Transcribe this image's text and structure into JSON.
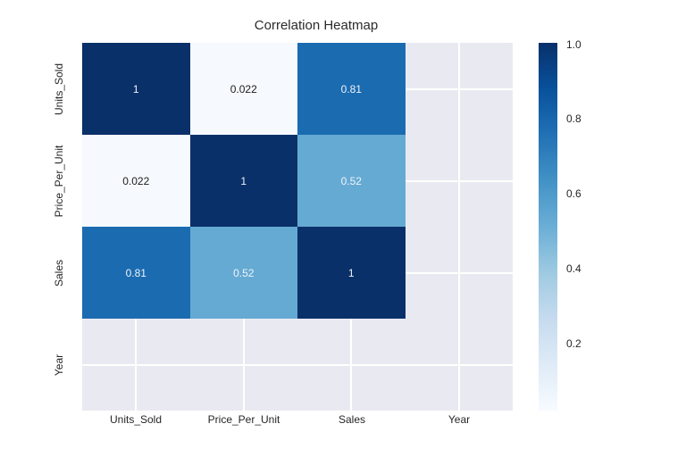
{
  "chart_data": {
    "type": "heatmap",
    "title": "Correlation Heatmap",
    "x_tick_labels": [
      "Units_Sold",
      "Price_Per_Unit",
      "Sales",
      "Year"
    ],
    "y_tick_labels": [
      "Units_Sold",
      "Price_Per_Unit",
      "Sales",
      "Year"
    ],
    "matrix": [
      [
        1,
        0.022,
        0.81,
        null
      ],
      [
        0.022,
        1,
        0.52,
        null
      ],
      [
        0.81,
        0.52,
        1,
        null
      ],
      [
        null,
        null,
        null,
        null
      ]
    ],
    "cells": [
      {
        "label": "1",
        "bg": "#0a3069",
        "fg": "#eff3f9"
      },
      {
        "label": "0.022",
        "bg": "#f6fafe",
        "fg": "#1c1c1c"
      },
      {
        "label": "0.81",
        "bg": "#1b6bb1",
        "fg": "#eff3f9"
      },
      {
        "label": "",
        "bg": "",
        "fg": ""
      },
      {
        "label": "0.022",
        "bg": "#f6fafe",
        "fg": "#1c1c1c"
      },
      {
        "label": "1",
        "bg": "#0a3069",
        "fg": "#eff3f9"
      },
      {
        "label": "0.52",
        "bg": "#65aad3",
        "fg": "#eff3f9"
      },
      {
        "label": "",
        "bg": "",
        "fg": ""
      },
      {
        "label": "0.81",
        "bg": "#1b6bb1",
        "fg": "#eff3f9"
      },
      {
        "label": "0.52",
        "bg": "#65aad3",
        "fg": "#eff3f9"
      },
      {
        "label": "1",
        "bg": "#0a3069",
        "fg": "#eff3f9"
      },
      {
        "label": "",
        "bg": "",
        "fg": ""
      },
      {
        "label": "",
        "bg": "",
        "fg": ""
      },
      {
        "label": "",
        "bg": "",
        "fg": ""
      },
      {
        "label": "",
        "bg": "",
        "fg": ""
      },
      {
        "label": "",
        "bg": "",
        "fg": ""
      }
    ],
    "colorbar": {
      "ticks": [
        "1.0",
        "0.8",
        "0.6",
        "0.4",
        "0.2"
      ],
      "vmin": 0.022,
      "vmax": 1.0,
      "gradient_stops": [
        "#08306b",
        "#08519c",
        "#2171b5",
        "#4292c6",
        "#6baed6",
        "#9ecae1",
        "#c6dbef",
        "#deebf7",
        "#f7fbff"
      ]
    },
    "colors": {
      "empty_cell_background": "#e9eaf1",
      "gridline": "#ffffff",
      "figure_background": "#ffffff",
      "text": "#262626"
    }
  }
}
